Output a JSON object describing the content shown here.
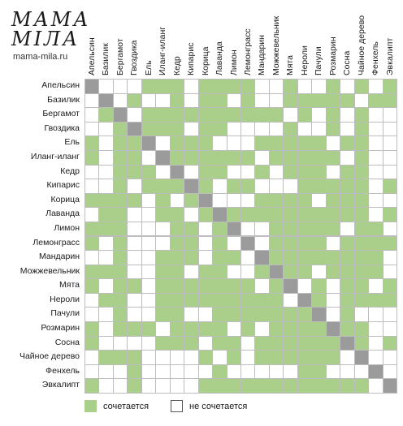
{
  "logo": {
    "line1": "МАМА",
    "line2": "МІЛА",
    "site": "mama-mila.ru"
  },
  "oils": [
    "Апельсин",
    "Базилик",
    "Бергамот",
    "Гвоздика",
    "Ель",
    "Иланг-иланг",
    "Кедр",
    "Кипарис",
    "Корица",
    "Лаванда",
    "Лимон",
    "Лемонграсс",
    "Мандарин",
    "Можжевельник",
    "Мята",
    "Нероли",
    "Пачули",
    "Розмарин",
    "Сосна",
    "Чайное дерево",
    "Фенхель",
    "Эвкалипт"
  ],
  "matrix": [
    "2000111011110010010101",
    "0201001011010011111011",
    "0120111111111101010100",
    "0012111011000010010100",
    "1011201110001111101100",
    "1011021111110111110100",
    "0011102011001011101100",
    "0010111210110001111101",
    "1111010120001111011100",
    "0110011012111111111101",
    "1110001101200111110110",
    "1010001101020111101111",
    "0010011101102111111110",
    "1110011011001211011110",
    "1011011111110120101101",
    "0110011111111102101111",
    "0010011001111111201000",
    "1011101111010111121100",
    "1000011101101111112101",
    "0111000010101111110200",
    "0001000001000001100020",
    "1001000011111111111102"
  ],
  "legend": {
    "yes": "сочетается",
    "no": "не сочетается"
  },
  "colors": {
    "yes": "#a9cf8b",
    "no": "#ffffff",
    "diagonal": "#9b9b9b",
    "grid": "#bdbdbd"
  }
}
